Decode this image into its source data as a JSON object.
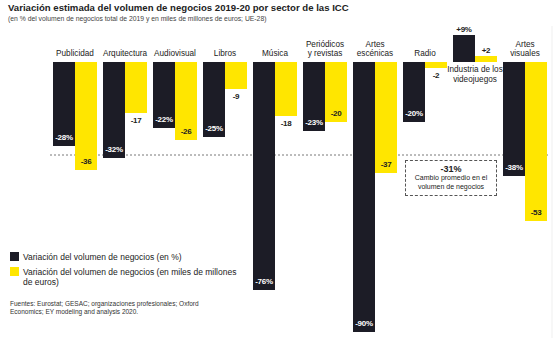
{
  "chart_data": {
    "type": "bar",
    "title": "Variación estimada del volumen de negocios 2019-20 por sector de las ICC",
    "subtitle": "(en % del volumen de negocios total de 2019 y en miles de millones de euros; UE-28)",
    "categories": [
      "Publicidad",
      "Arquitectura",
      "Audiovisual",
      "Libros",
      "Música",
      "Periódicos\ny revistas",
      "Artes\nescénicas",
      "Radio",
      "Industria de los\nvideojuegos",
      "Artes\nvisuales"
    ],
    "series": [
      {
        "name": "Variación del volumen de negocios (en %)",
        "color": "#1c1c26",
        "values": [
          -28,
          -32,
          -22,
          -25,
          -76,
          -23,
          -90,
          -20,
          9,
          -38
        ],
        "value_labels": [
          "-28%",
          "-32%",
          "-22%",
          "-25%",
          "-76%",
          "-23%",
          "-90%",
          "-20%",
          "+9%",
          "-38%"
        ]
      },
      {
        "name": "Variación del volumen de negocios (en miles de millones de euros)",
        "color": "#ffe600",
        "values": [
          -36,
          -17,
          -26,
          -9,
          -18,
          -20,
          -37,
          -2,
          2,
          -53
        ],
        "value_labels": [
          "-36",
          "-17",
          "-26",
          "-9",
          "-18",
          "-20",
          "-37",
          "-2",
          "+2",
          "-53"
        ]
      }
    ],
    "ylim": [
      -92,
      12
    ],
    "tick_labels": false,
    "data_labels": true,
    "legend": "bottom-left",
    "annotations": [
      {
        "value": -31,
        "label": "-31%",
        "text": "Cambio promedio en el volumen de negocios"
      }
    ],
    "source": "Fuentes: Eurostat; GESAC; organizaciones profesionales; Oxford Economics; EY modeling and analysis 2020."
  }
}
